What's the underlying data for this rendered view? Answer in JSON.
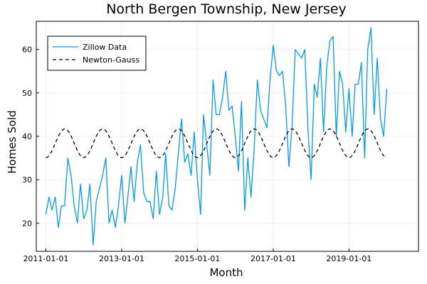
{
  "chart_data": {
    "type": "line",
    "title": "North Bergen Township, New Jersey",
    "xlabel": "Month",
    "ylabel": "Homes Sold",
    "x_axis": {
      "type": "date",
      "range": [
        "2010-10-01",
        "2020-11-01"
      ],
      "ticks": [
        "2011-01-01",
        "2013-01-01",
        "2015-01-01",
        "2017-01-01",
        "2019-01-01"
      ]
    },
    "y_axis": {
      "range": [
        13.5,
        66.5
      ],
      "ticks": [
        20,
        30,
        40,
        50,
        60
      ]
    },
    "grid": true,
    "legend": {
      "position": "top-left"
    },
    "series": [
      {
        "name": "Zillow Data",
        "color": "#009AFA",
        "style": "solid",
        "start": "2011-01-01",
        "frequency": "monthly",
        "values": [
          22,
          26,
          23,
          26,
          19,
          24,
          24,
          35,
          31,
          24,
          20,
          29,
          21,
          23,
          29,
          15,
          25,
          28,
          31,
          35,
          20,
          23,
          19,
          24,
          31,
          20,
          26,
          33,
          25,
          34,
          38,
          27,
          25,
          25,
          21,
          32,
          22,
          26,
          36,
          24,
          23,
          28,
          36,
          44,
          34,
          36,
          31,
          41,
          30,
          22,
          45,
          38,
          31,
          53,
          45,
          45,
          49,
          55,
          46,
          47,
          40,
          32,
          48,
          23,
          35,
          26,
          37,
          53,
          46,
          44,
          42,
          53,
          61,
          55,
          54,
          55,
          47,
          33,
          42,
          60,
          59,
          58,
          60,
          42,
          30,
          52,
          49,
          58,
          41,
          56,
          62,
          63,
          40,
          55,
          52,
          41,
          51,
          40,
          52,
          52,
          57,
          35,
          60,
          65,
          45,
          58,
          44,
          40,
          51
        ]
      },
      {
        "name": "Newton-Gauss",
        "color": "#000000",
        "style": "dashed",
        "start": "2011-01-01",
        "frequency": "monthly",
        "mean": 38.4,
        "amplitude": 3.3,
        "period_months": 12,
        "phase_month": 6
      }
    ]
  }
}
